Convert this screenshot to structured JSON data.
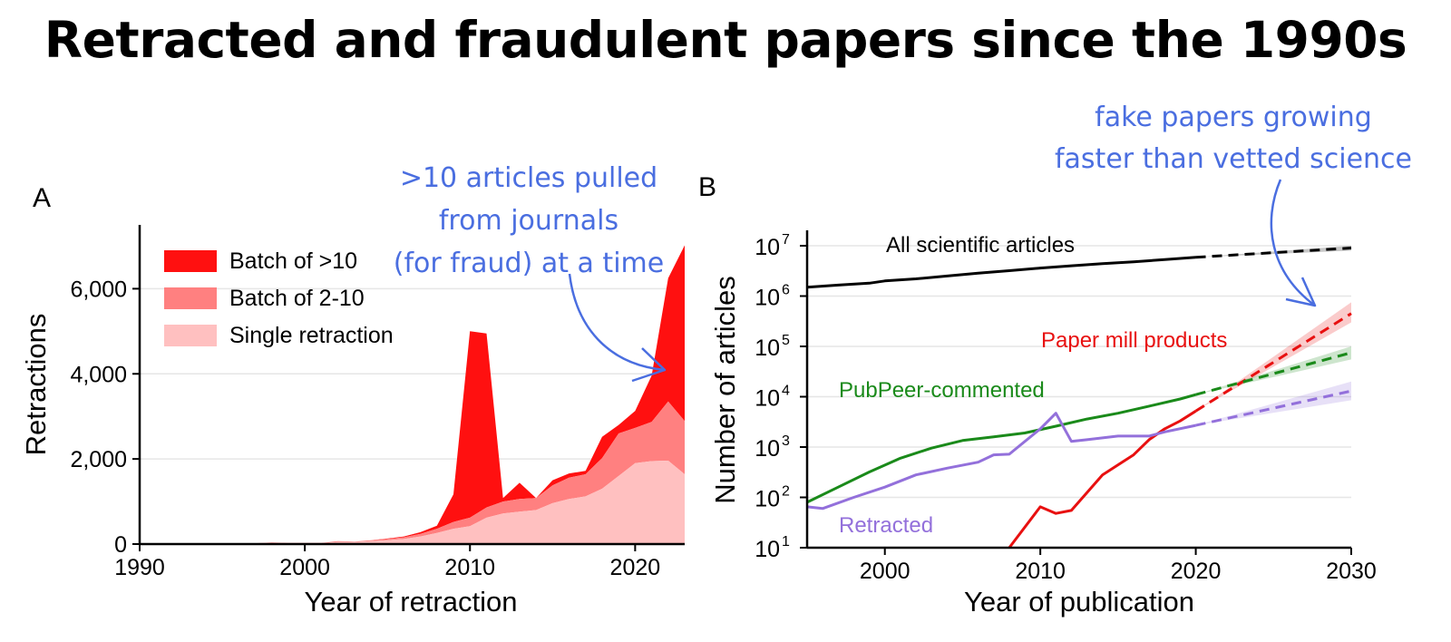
{
  "page_title": "Retracted and fraudulent papers since the 1990s",
  "chart_data": [
    {
      "type": "area",
      "panel_label": "A",
      "stacked": true,
      "xlabel": "Year of retraction",
      "ylabel": "Retractions",
      "xlim": [
        1990,
        2023
      ],
      "ylim": [
        0,
        7500
      ],
      "x_ticks": [
        1990,
        2000,
        2010,
        2020
      ],
      "x_tick_labels": [
        "1990",
        "2000",
        "2010",
        "2020"
      ],
      "y_ticks": [
        0,
        2000,
        4000,
        6000
      ],
      "y_tick_labels": [
        "0",
        "2,000",
        "4,000",
        "6,000"
      ],
      "grid": "horizontal",
      "legend_position": "top-left",
      "years": [
        1990,
        1991,
        1992,
        1993,
        1994,
        1995,
        1996,
        1997,
        1998,
        1999,
        2000,
        2001,
        2002,
        2003,
        2004,
        2005,
        2006,
        2007,
        2008,
        2009,
        2010,
        2011,
        2012,
        2013,
        2014,
        2015,
        2016,
        2017,
        2018,
        2019,
        2020,
        2021,
        2022,
        2023
      ],
      "series": [
        {
          "name": "Single retraction",
          "color": "#ffc0c0",
          "values": [
            10,
            10,
            10,
            10,
            10,
            15,
            15,
            20,
            30,
            20,
            20,
            20,
            50,
            50,
            70,
            90,
            120,
            180,
            260,
            360,
            420,
            620,
            720,
            760,
            800,
            960,
            1060,
            1120,
            1300,
            1600,
            1900,
            1950,
            1960,
            1640
          ]
        },
        {
          "name": "Batch of 2-10",
          "color": "#ff8080",
          "values": [
            0,
            0,
            0,
            0,
            0,
            0,
            0,
            0,
            10,
            5,
            5,
            5,
            20,
            10,
            20,
            30,
            40,
            60,
            100,
            160,
            200,
            240,
            280,
            300,
            280,
            420,
            500,
            520,
            720,
            1000,
            830,
            920,
            1390,
            1250
          ]
        },
        {
          "name": "Batch of >10",
          "color": "#ff1010",
          "values": [
            0,
            0,
            0,
            0,
            0,
            0,
            0,
            0,
            0,
            0,
            0,
            0,
            0,
            0,
            0,
            10,
            20,
            40,
            70,
            650,
            4380,
            4090,
            80,
            380,
            0,
            120,
            100,
            80,
            500,
            200,
            400,
            1090,
            2900,
            4130
          ]
        }
      ],
      "annotation": ">10 articles pulled from journals (for fraud) at a time",
      "annotation_lines": [
        ">10 articles pulled",
        "from journals",
        "(for fraud) at a time"
      ]
    },
    {
      "type": "line",
      "panel_label": "B",
      "xlabel": "Year of publication",
      "ylabel": "Number of articles",
      "y_scale": "log",
      "xlim": [
        1995,
        2030
      ],
      "ylim": [
        10,
        10000000
      ],
      "x_ticks": [
        2000,
        2010,
        2020,
        2030
      ],
      "x_tick_labels": [
        "2000",
        "2010",
        "2020",
        "2030"
      ],
      "y_ticks": [
        10,
        100,
        1000,
        10000,
        100000,
        1000000,
        10000000
      ],
      "y_tick_exponents": [
        "1",
        "2",
        "3",
        "4",
        "5",
        "6",
        "7"
      ],
      "y_tick_base": "10",
      "grid": "horizontal",
      "series": [
        {
          "name": "All scientific articles",
          "color": "#000000",
          "x": [
            1995,
            1997,
            1999,
            2000,
            2002,
            2004,
            2006,
            2008,
            2010,
            2012,
            2014,
            2016,
            2018,
            2020
          ],
          "y": [
            1500000,
            1650000,
            1800000,
            2000000,
            2200000,
            2500000,
            2850000,
            3200000,
            3600000,
            4000000,
            4400000,
            4800000,
            5300000,
            5900000
          ],
          "projection": {
            "x": [
              2020,
              2030
            ],
            "y": [
              5900000,
              9000000
            ],
            "band_low": [
              5900000,
              8000000
            ],
            "band_high": [
              5900000,
              10000000
            ]
          }
        },
        {
          "name": "Paper mill products",
          "color": "#e81010",
          "x": [
            2008,
            2010,
            2011,
            2012,
            2014,
            2016,
            2017,
            2018,
            2019,
            2020
          ],
          "y": [
            10,
            65,
            48,
            55,
            280,
            700,
            1400,
            2300,
            3300,
            5200
          ],
          "projection": {
            "x": [
              2020,
              2030
            ],
            "y": [
              5200,
              450000
            ],
            "band_low": [
              5200,
              300000
            ],
            "band_high": [
              5200,
              750000
            ]
          }
        },
        {
          "name": "PubPeer-commented",
          "color": "#1a8a1a",
          "x": [
            1995,
            1997,
            1999,
            2001,
            2003,
            2005,
            2007,
            2009,
            2011,
            2013,
            2015,
            2017,
            2019,
            2020
          ],
          "y": [
            80,
            160,
            320,
            600,
            950,
            1350,
            1600,
            1900,
            2600,
            3600,
            4700,
            6500,
            9000,
            11000
          ],
          "projection": {
            "x": [
              2020,
              2030
            ],
            "y": [
              11000,
              75000
            ],
            "band_low": [
              11000,
              55000
            ],
            "band_high": [
              11000,
              100000
            ]
          }
        },
        {
          "name": "Retracted",
          "color": "#9370db",
          "x": [
            1995,
            1996,
            1998,
            2000,
            2002,
            2004,
            2006,
            2007,
            2008,
            2010,
            2011,
            2012,
            2013,
            2015,
            2017,
            2018,
            2020
          ],
          "y": [
            65,
            60,
            100,
            160,
            280,
            380,
            500,
            700,
            720,
            2300,
            4700,
            1300,
            1400,
            1650,
            1650,
            2000,
            2700
          ],
          "projection": {
            "x": [
              2020,
              2030
            ],
            "y": [
              2700,
              13000
            ],
            "band_low": [
              2700,
              8500
            ],
            "band_high": [
              2700,
              20000
            ]
          }
        }
      ],
      "annotation": "fake papers growing faster than vetted science",
      "annotation_lines": [
        "fake papers growing",
        "faster than vetted science"
      ]
    }
  ],
  "colors": {
    "annotation": "#4a6ee0",
    "grid": "#e6e6e6"
  }
}
